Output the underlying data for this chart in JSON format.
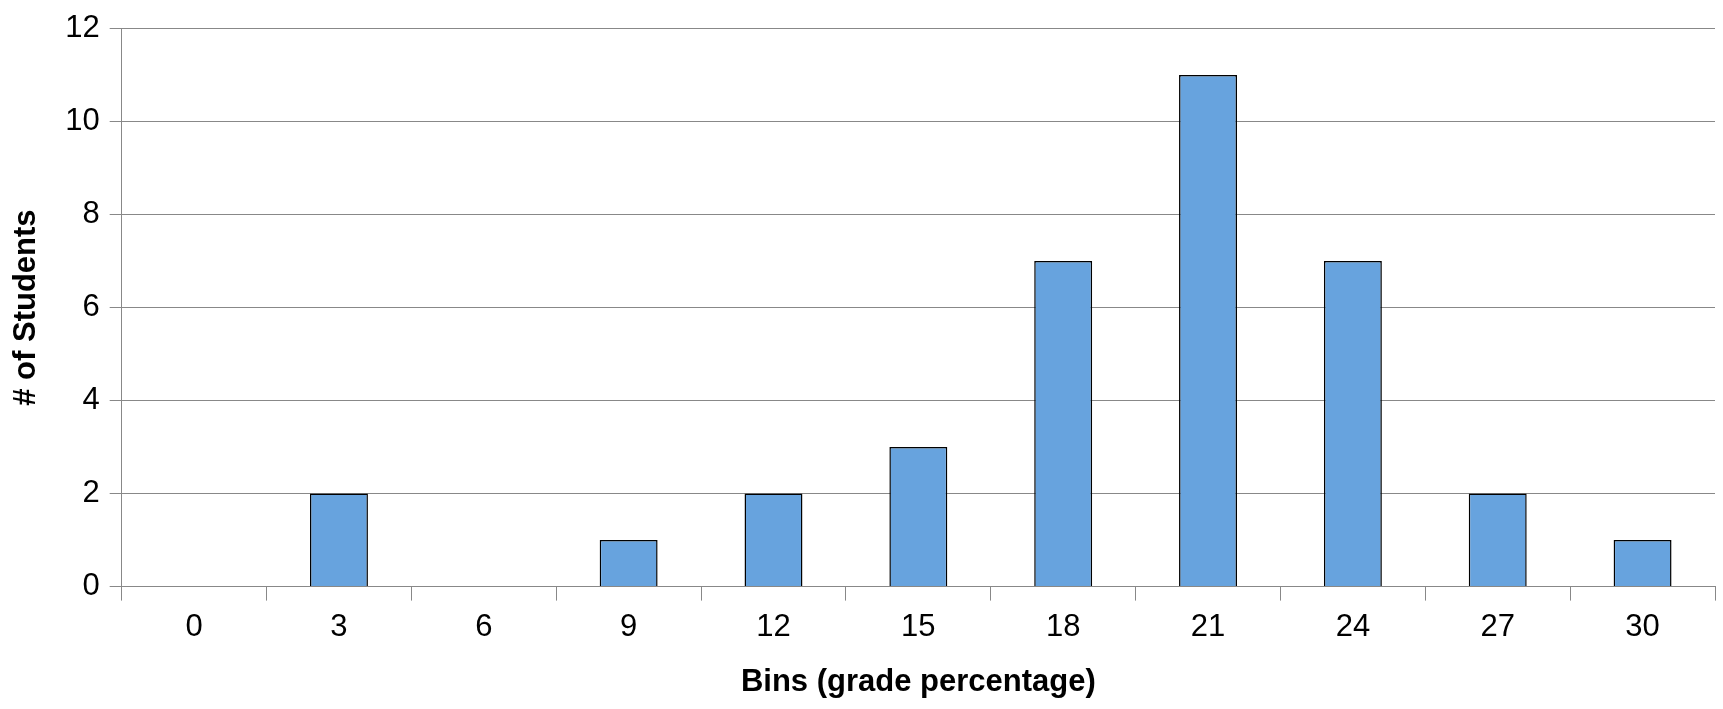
{
  "chart_data": {
    "type": "bar",
    "xlabel": "Bins (grade percentage)",
    "ylabel": "# of Students",
    "categories": [
      "0",
      "3",
      "6",
      "9",
      "12",
      "15",
      "18",
      "21",
      "24",
      "27",
      "30"
    ],
    "values": [
      0,
      2,
      0,
      1,
      2,
      3,
      7,
      11,
      7,
      2,
      1
    ],
    "color": "#67a3de",
    "ylim": [
      0,
      12
    ],
    "yticks": [
      0,
      2,
      4,
      6,
      8,
      10,
      12
    ],
    "grid": "y"
  }
}
